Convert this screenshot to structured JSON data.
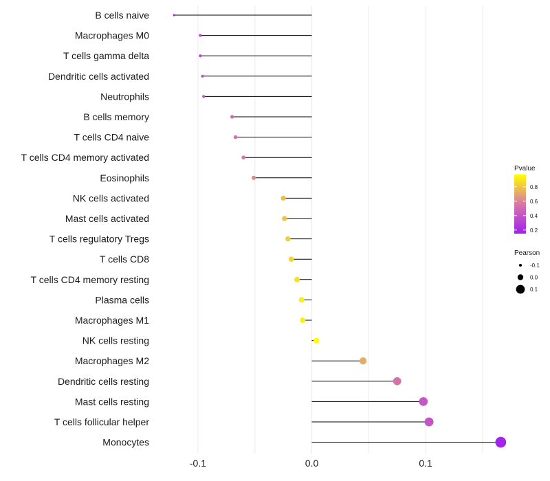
{
  "chart_data": {
    "type": "lollipop",
    "title": "",
    "xlabel": "",
    "ylabel": "",
    "xlim": [
      -0.135,
      0.17
    ],
    "x_ticks": [
      {
        "value": -0.1,
        "label": "-0.1"
      },
      {
        "value": 0.0,
        "label": "0.0"
      },
      {
        "value": 0.1,
        "label": "0.1"
      }
    ],
    "grid": true,
    "categories": [
      "B cells naive",
      "Macrophages M0",
      "T cells gamma delta",
      "Dendritic cells activated",
      "Neutrophils",
      "B cells memory",
      "T cells CD4 naive",
      "T cells CD4 memory activated",
      "Eosinophils",
      "NK cells activated",
      "Mast cells activated",
      "T cells regulatory  Tregs ",
      "T cells CD8",
      "T cells CD4 memory resting",
      "Plasma cells",
      "Macrophages M1",
      "NK cells resting",
      "Macrophages M2",
      "Dendritic cells resting",
      "Mast cells resting",
      "T cells follicular helper",
      "Monocytes"
    ],
    "pearson": [
      -0.121,
      -0.098,
      -0.098,
      -0.096,
      -0.095,
      -0.07,
      -0.067,
      -0.06,
      -0.051,
      -0.025,
      -0.024,
      -0.021,
      -0.018,
      -0.013,
      -0.009,
      -0.008,
      0.004,
      0.045,
      0.075,
      0.098,
      0.103,
      0.166
    ],
    "pvalue": [
      0.16,
      0.34,
      0.34,
      0.35,
      0.36,
      0.5,
      0.52,
      0.56,
      0.62,
      0.78,
      0.79,
      0.82,
      0.84,
      0.88,
      0.92,
      0.93,
      0.97,
      0.72,
      0.53,
      0.42,
      0.4,
      0.17
    ],
    "legend_pvalue": {
      "title": "Pvalue",
      "ticks": [
        {
          "value": 0.8,
          "label": "0.8"
        },
        {
          "value": 0.6,
          "label": "0.6"
        },
        {
          "value": 0.4,
          "label": "0.4"
        },
        {
          "value": 0.2,
          "label": "0.2"
        }
      ],
      "range": [
        0.15,
        0.97
      ],
      "color_low": "#a020f0",
      "color_mid": "#d877a8",
      "color_high": "#ffff00"
    },
    "legend_pearson": {
      "title": "Pearson",
      "entries": [
        {
          "value": -0.1,
          "label": "-0.1"
        },
        {
          "value": 0.0,
          "label": "0.0"
        },
        {
          "value": 0.1,
          "label": "0.1"
        }
      ]
    }
  }
}
